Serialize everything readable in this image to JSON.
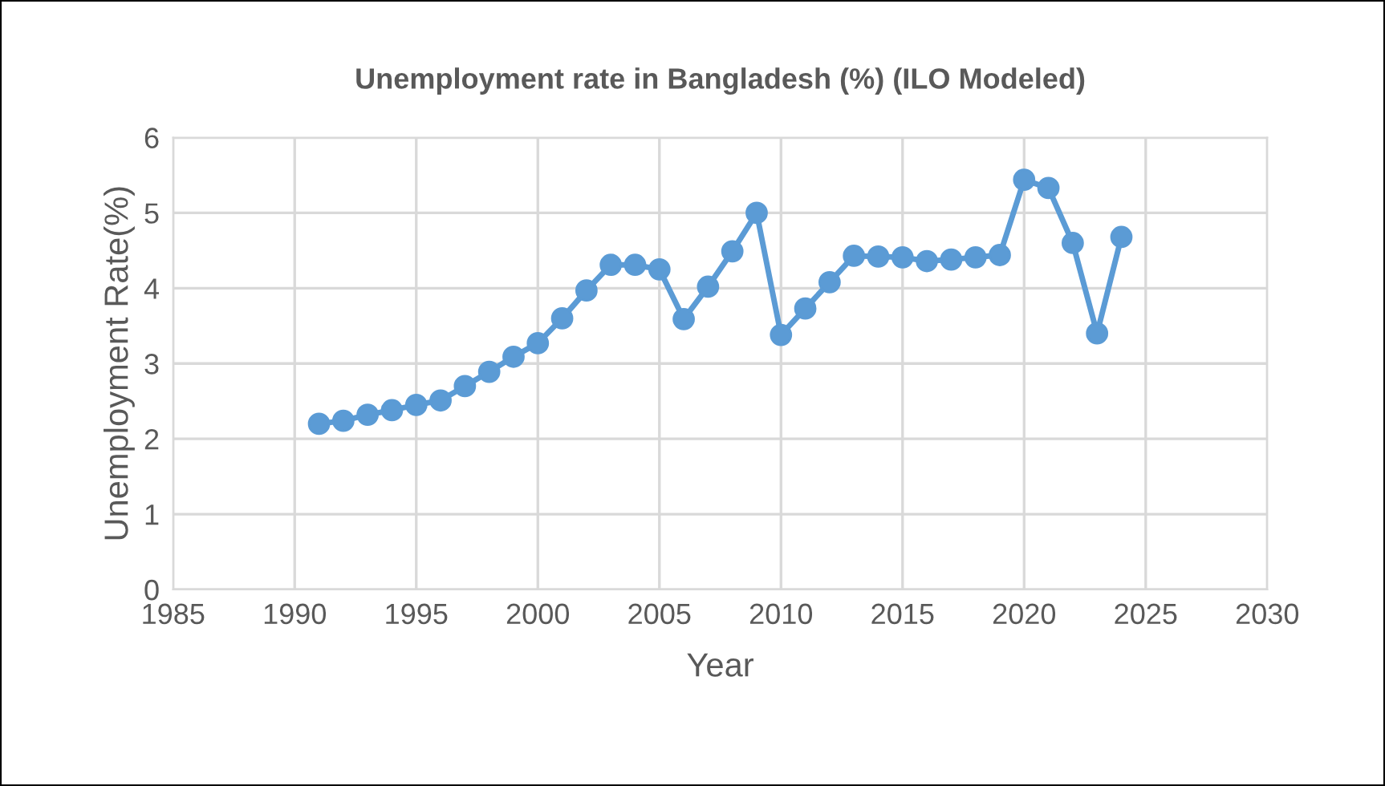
{
  "chart_data": {
    "type": "line",
    "title": "Unemployment rate in Bangladesh (%) (ILO Modeled)",
    "xlabel": "Year",
    "ylabel": "Unemployment Rate(%)",
    "x": [
      1991,
      1992,
      1993,
      1994,
      1995,
      1996,
      1997,
      1998,
      1999,
      2000,
      2001,
      2002,
      2003,
      2004,
      2005,
      2006,
      2007,
      2008,
      2009,
      2010,
      2011,
      2012,
      2013,
      2014,
      2015,
      2016,
      2017,
      2018,
      2019,
      2020,
      2021,
      2022,
      2023,
      2024
    ],
    "series": [
      {
        "color": "#5b9bd5",
        "values": [
          2.2,
          2.24,
          2.32,
          2.38,
          2.45,
          2.51,
          2.7,
          2.89,
          3.09,
          3.27,
          3.6,
          3.97,
          4.31,
          4.31,
          4.25,
          3.59,
          4.02,
          4.49,
          5.0,
          3.38,
          3.73,
          4.08,
          4.43,
          4.42,
          4.41,
          4.36,
          4.38,
          4.41,
          4.44,
          5.44,
          5.33,
          4.6,
          3.4,
          4.68
        ]
      }
    ],
    "xlim": [
      1985,
      2030
    ],
    "xticks": [
      1985,
      1990,
      1995,
      2000,
      2005,
      2010,
      2015,
      2020,
      2025,
      2030
    ],
    "ylim": [
      0,
      6
    ],
    "yticks": [
      0,
      1,
      2,
      3,
      4,
      5,
      6
    ],
    "grid": true,
    "marker": "circle",
    "line_style": "solid",
    "legend": false
  }
}
